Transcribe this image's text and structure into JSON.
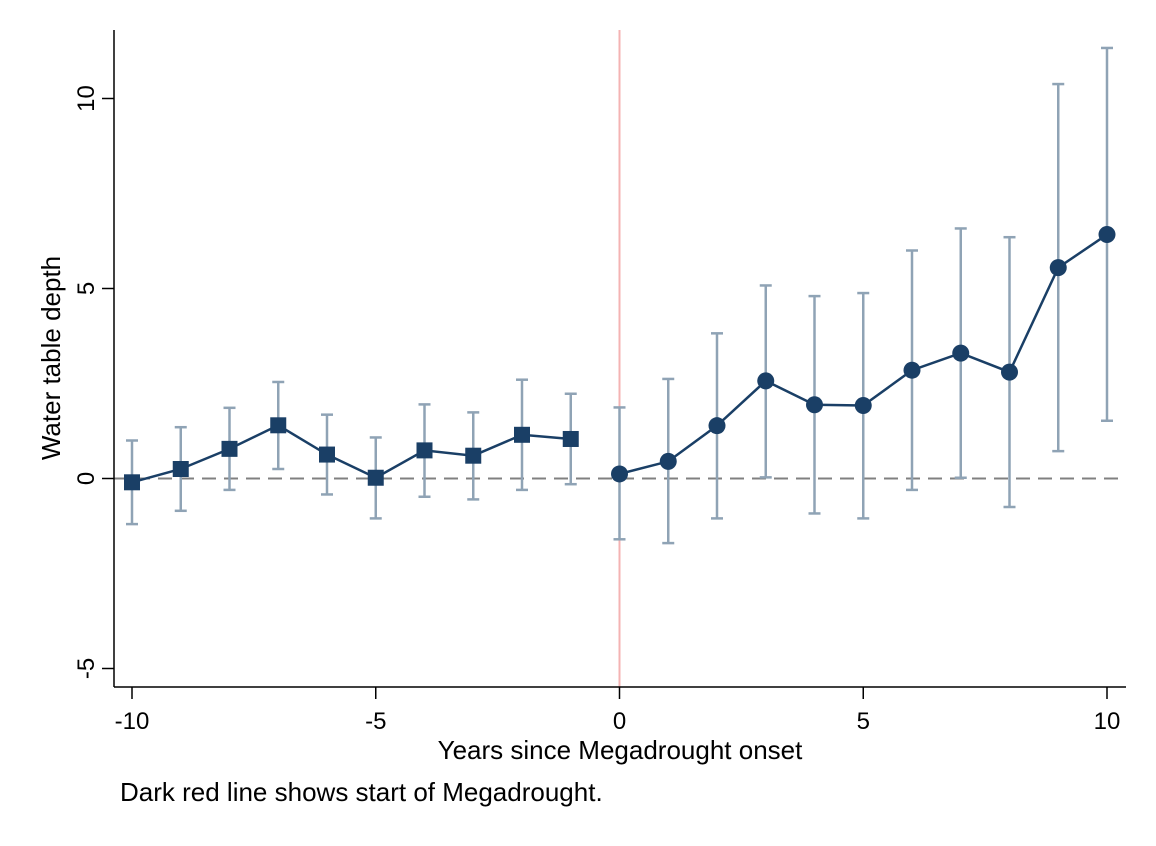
{
  "chart_data": {
    "type": "scatter",
    "xlabel": "Years since Megadrought onset",
    "ylabel": "Water table depth",
    "note": "Dark red line shows start of Megadrought.",
    "xlim": [
      -10,
      10
    ],
    "ylim": [
      -5,
      12
    ],
    "x_ticks": [
      -10,
      -5,
      0,
      5,
      10
    ],
    "y_ticks": [
      -5,
      0,
      5,
      10
    ],
    "reference_lines": {
      "horizontal_dashed_at_y": 0,
      "vertical_at_x": 0
    },
    "grid": false,
    "legend": "none",
    "colors": {
      "series": "#1a3f66",
      "error_bars": "#8fa3b5",
      "zero_line": "#808080",
      "onset_line": "#f4b3b3"
    },
    "series": [
      {
        "marker": "square",
        "points": [
          {
            "x": -10,
            "y": -0.1,
            "lo": -1.2,
            "hi": 1.0
          },
          {
            "x": -9,
            "y": 0.25,
            "lo": -0.85,
            "hi": 1.35
          },
          {
            "x": -8,
            "y": 0.78,
            "lo": -0.3,
            "hi": 1.86
          },
          {
            "x": -7,
            "y": 1.4,
            "lo": 0.25,
            "hi": 2.54
          },
          {
            "x": -6,
            "y": 0.63,
            "lo": -0.42,
            "hi": 1.68
          },
          {
            "x": -5,
            "y": 0.02,
            "lo": -1.05,
            "hi": 1.08
          },
          {
            "x": -4,
            "y": 0.74,
            "lo": -0.48,
            "hi": 1.95
          },
          {
            "x": -3,
            "y": 0.6,
            "lo": -0.55,
            "hi": 1.74
          },
          {
            "x": -2,
            "y": 1.15,
            "lo": -0.3,
            "hi": 2.6
          },
          {
            "x": -1,
            "y": 1.04,
            "lo": -0.15,
            "hi": 2.23
          }
        ]
      },
      {
        "marker": "circle",
        "points": [
          {
            "x": 0,
            "y": 0.12,
            "lo": -1.6,
            "hi": 1.87
          },
          {
            "x": 1,
            "y": 0.45,
            "lo": -1.7,
            "hi": 2.62
          },
          {
            "x": 2,
            "y": 1.39,
            "lo": -1.05,
            "hi": 3.82
          },
          {
            "x": 3,
            "y": 2.57,
            "lo": 0.03,
            "hi": 5.08
          },
          {
            "x": 4,
            "y": 1.94,
            "lo": -0.92,
            "hi": 4.8
          },
          {
            "x": 5,
            "y": 1.92,
            "lo": -1.05,
            "hi": 4.88
          },
          {
            "x": 6,
            "y": 2.85,
            "lo": -0.3,
            "hi": 6.0
          },
          {
            "x": 7,
            "y": 3.3,
            "lo": 0.02,
            "hi": 6.58
          },
          {
            "x": 8,
            "y": 2.8,
            "lo": -0.75,
            "hi": 6.35
          },
          {
            "x": 9,
            "y": 5.55,
            "lo": 0.72,
            "hi": 10.38
          },
          {
            "x": 10,
            "y": 6.42,
            "lo": 1.52,
            "hi": 11.33
          }
        ]
      }
    ]
  }
}
